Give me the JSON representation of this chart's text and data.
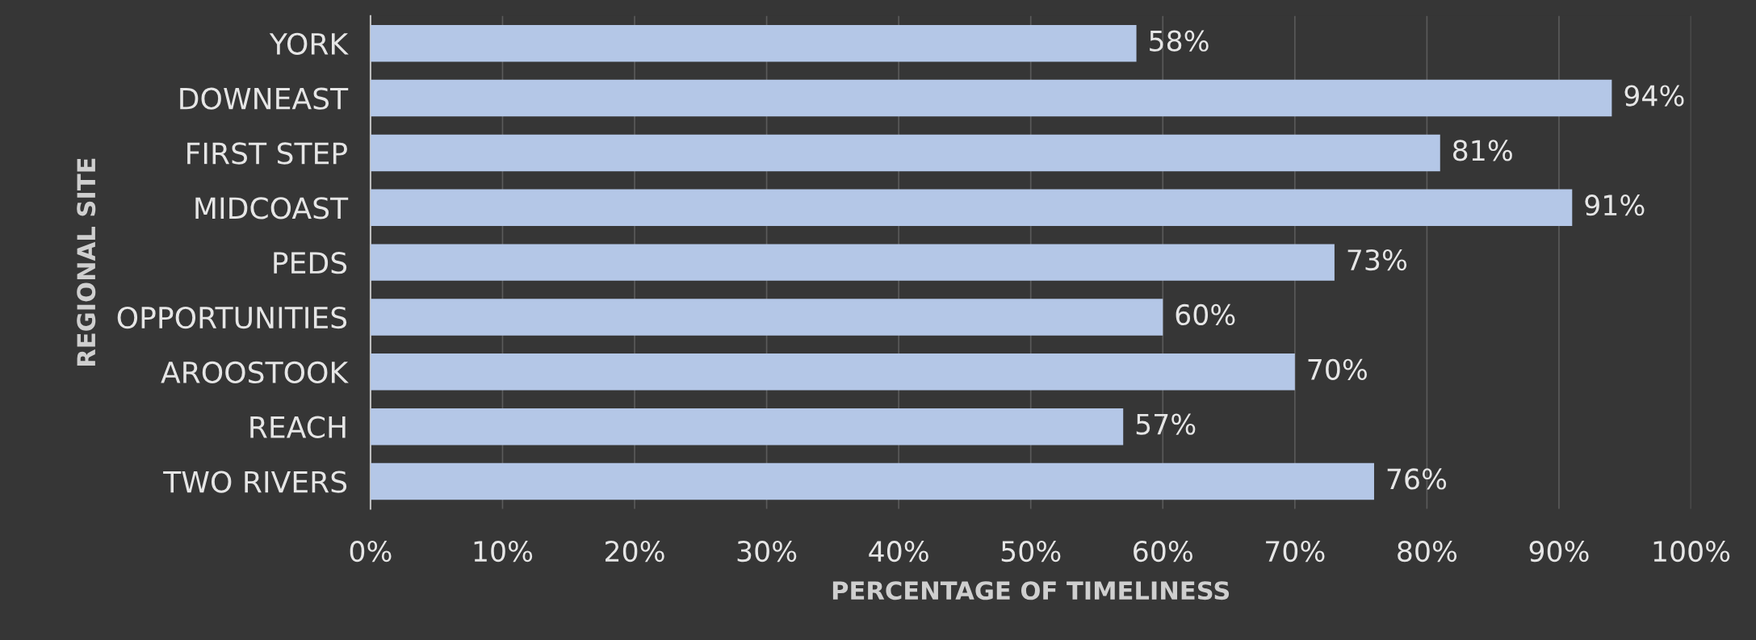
{
  "chart_data": {
    "type": "bar",
    "orientation": "horizontal",
    "xlabel": "PERCENTAGE OF TIMELINESS",
    "ylabel": "REGIONAL SITE",
    "categories": [
      "YORK",
      "DOWNEAST",
      "FIRST STEP",
      "MIDCOAST",
      "PEDS",
      "OPPORTUNITIES",
      "AROOSTOOK",
      "REACH",
      "TWO RIVERS"
    ],
    "values": [
      58,
      94,
      81,
      91,
      73,
      60,
      70,
      57,
      76
    ],
    "value_labels": [
      "58%",
      "94%",
      "81%",
      "91%",
      "73%",
      "60%",
      "70%",
      "57%",
      "76%"
    ],
    "color": "#b4c7e7",
    "xlim": [
      0,
      100
    ],
    "xticks": [
      {
        "value": 0,
        "label": "0%"
      },
      {
        "value": 10,
        "label": "10%"
      },
      {
        "value": 20,
        "label": "20%"
      },
      {
        "value": 30,
        "label": "30%"
      },
      {
        "value": 40,
        "label": "40%"
      },
      {
        "value": 50,
        "label": "50%"
      },
      {
        "value": 60,
        "label": "60%"
      },
      {
        "value": 70,
        "label": "70%"
      },
      {
        "value": 80,
        "label": "80%"
      },
      {
        "value": 90,
        "label": "90%"
      },
      {
        "value": 100,
        "label": "100%"
      }
    ],
    "grid": "x"
  }
}
